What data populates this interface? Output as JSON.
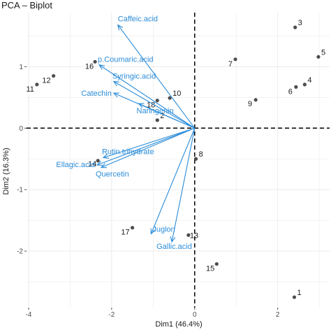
{
  "chart_data": {
    "type": "scatter",
    "title": "PCA – Biplot",
    "xlabel": "Dim1 (46.4%)",
    "ylabel": "Dim2 (16.3%)",
    "xlim": [
      -4.05,
      3.25
    ],
    "ylim": [
      -2.92,
      1.88
    ],
    "xticks": [
      -4,
      -2,
      0,
      2
    ],
    "yticks": [
      -2,
      -1,
      0,
      1
    ],
    "grid": true,
    "reference_lines": {
      "x": 0,
      "y": 0,
      "style": "dashed"
    },
    "point_color": "#4d4d4d",
    "arrow_color": "#2b8cd8",
    "individuals": [
      {
        "label": "1",
        "x": 2.4,
        "y": -2.75
      },
      {
        "label": "2",
        "x": -0.9,
        "y": 0.13
      },
      {
        "label": "3",
        "x": 2.42,
        "y": 1.64
      },
      {
        "label": "4",
        "x": 2.65,
        "y": 0.71
      },
      {
        "label": "5",
        "x": 2.98,
        "y": 1.16
      },
      {
        "label": "6",
        "x": 2.44,
        "y": 0.67
      },
      {
        "label": "7",
        "x": 0.98,
        "y": 1.12
      },
      {
        "label": "8",
        "x": 0.03,
        "y": -0.5
      },
      {
        "label": "9",
        "x": 1.47,
        "y": 0.46
      },
      {
        "label": "10",
        "x": -0.6,
        "y": 0.49
      },
      {
        "label": "11",
        "x": -3.8,
        "y": 0.71
      },
      {
        "label": "12",
        "x": -3.4,
        "y": 0.85
      },
      {
        "label": "13",
        "x": -0.15,
        "y": -1.74
      },
      {
        "label": "14",
        "x": -2.33,
        "y": -0.53
      },
      {
        "label": "15",
        "x": 0.53,
        "y": -2.21
      },
      {
        "label": "16",
        "x": -2.4,
        "y": 1.08
      },
      {
        "label": "17",
        "x": -1.5,
        "y": -1.62
      },
      {
        "label": "18",
        "x": -0.9,
        "y": 0.45
      }
    ],
    "variables": [
      {
        "label": "Caffeic.acid",
        "x": -1.85,
        "y": 1.68
      },
      {
        "label": "p.Coumaric.acid",
        "x": -2.3,
        "y": 1.03
      },
      {
        "label": "Syringic.acid",
        "x": -1.95,
        "y": 0.76
      },
      {
        "label": "Catechin",
        "x": -1.95,
        "y": 0.57
      },
      {
        "label": "Naringenin",
        "x": -1.35,
        "y": 0.4
      },
      {
        "label": "Rutin.trihydrate",
        "x": -2.2,
        "y": -0.48
      },
      {
        "label": "Ellagic.acid",
        "x": -2.35,
        "y": -0.6
      },
      {
        "label": "Quercetin",
        "x": -2.25,
        "y": -0.64
      },
      {
        "label": "Juglon",
        "x": -1.05,
        "y": -1.72
      },
      {
        "label": "Gallic.acid",
        "x": -0.55,
        "y": -1.85
      }
    ]
  }
}
